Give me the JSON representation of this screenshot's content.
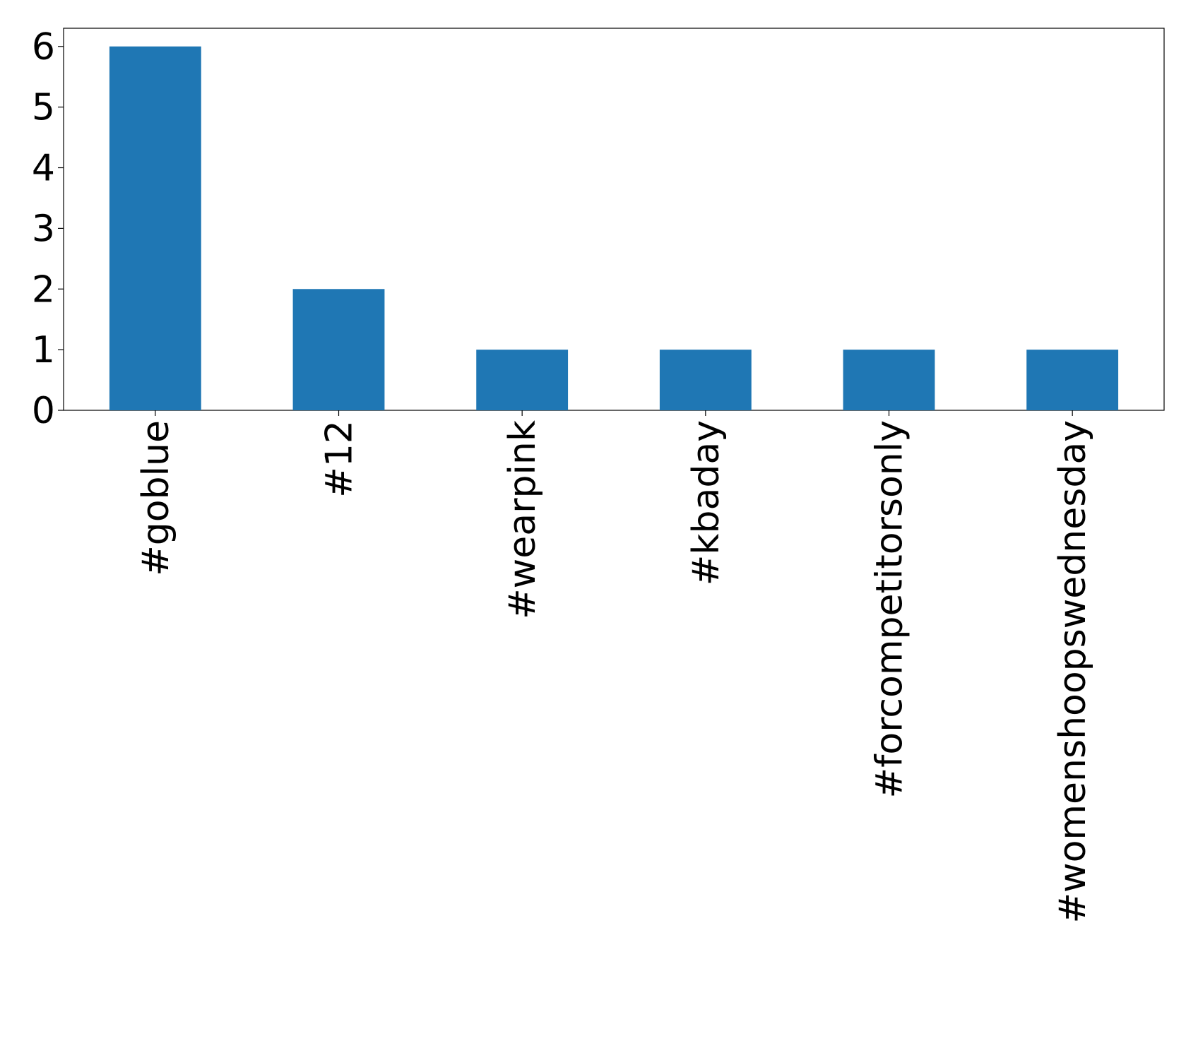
{
  "chart_data": {
    "type": "bar",
    "categories": [
      "#goblue",
      "#12",
      "#wearpink",
      "#kbaday",
      "#forcompetitorsonly",
      "#womenshoopswednesday"
    ],
    "values": [
      6,
      2,
      1,
      1,
      1,
      1
    ],
    "color": "#1f77b4",
    "ylim": [
      0,
      6.3
    ],
    "yticks": [
      0,
      1,
      2,
      3,
      4,
      5,
      6
    ],
    "grid": false
  }
}
